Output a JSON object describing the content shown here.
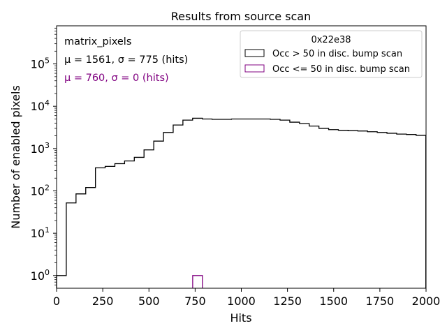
{
  "chart_data": {
    "type": "histogram",
    "title": "Results from source scan",
    "xlabel": "Hits",
    "ylabel": "Number of enabled pixels",
    "xlim": [
      0,
      2000
    ],
    "ylim_log10": [
      -0.3,
      5.9
    ],
    "yscale": "log",
    "x_ticks": [
      0,
      250,
      500,
      750,
      1000,
      1250,
      1500,
      1750,
      2000
    ],
    "x_tick_labels": [
      "0",
      "250",
      "500",
      "750",
      "1000",
      "1250",
      "1500",
      "1750",
      "2000"
    ],
    "y_tick_exponents": [
      0,
      1,
      2,
      3,
      4,
      5
    ],
    "y_tick_base": "10",
    "annotations": {
      "name": "matrix_pixels",
      "stats_black": "μ = 1561, σ = 775 (hits)",
      "stats_purple": "μ = 760, σ = 0 (hits)"
    },
    "legend": {
      "title": "0x22e38",
      "position": "top-right",
      "entries": [
        {
          "label": "Occ > 50 in disc. bump scan",
          "color": "#000000"
        },
        {
          "label": "Occ <= 50 in disc. bump scan",
          "color": "#800080"
        }
      ]
    },
    "series": [
      {
        "name": "Occ > 50 in disc. bump scan",
        "color": "#000000",
        "bin_width": 52.6,
        "bins_start": 0,
        "values": [
          1,
          52,
          85,
          120,
          350,
          380,
          440,
          510,
          620,
          930,
          1500,
          2400,
          3600,
          4700,
          5200,
          5000,
          4900,
          4900,
          5000,
          5000,
          5000,
          5000,
          4900,
          4700,
          4200,
          3900,
          3400,
          3000,
          2800,
          2700,
          2650,
          2600,
          2500,
          2400,
          2300,
          2200,
          2150,
          2050
        ]
      },
      {
        "name": "Occ <= 50 in disc. bump scan",
        "color": "#800080",
        "bin_width": 52.6,
        "bins_start": 736.8,
        "values": [
          1
        ]
      }
    ]
  }
}
